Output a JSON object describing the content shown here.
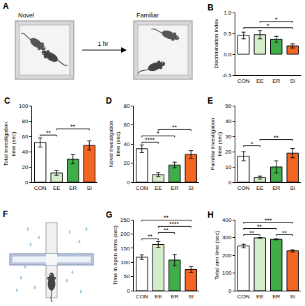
{
  "diagrams": [
    {
      "panel": "A",
      "left_label": "Novel",
      "arrow_label": "1 hr",
      "right_label": "Familiar"
    },
    {
      "panel": "F"
    }
  ],
  "chart_data": [
    {
      "panel": "B",
      "type": "bar",
      "y_label": "Discrimination index",
      "categories": [
        "CON",
        "EE",
        "ER",
        "SI"
      ],
      "values": [
        0.45,
        0.47,
        0.36,
        0.2
      ],
      "errors": [
        0.08,
        0.1,
        0.07,
        0.05
      ],
      "colors": [
        "#ffffff",
        "#d4ecc9",
        "#3fae49",
        "#f26522"
      ],
      "ylim": [
        -0.5,
        1.0
      ],
      "yticks": [
        -0.5,
        {
          "value": 0,
          "label": "0.0"
        },
        0.5,
        {
          "value": 1,
          "label": "1.0"
        }
      ],
      "grid": false,
      "significance": [
        {
          "from": "CON",
          "to": "SI",
          "label": "*"
        },
        {
          "from": "EE",
          "to": "SI",
          "label": "*"
        }
      ]
    },
    {
      "panel": "C",
      "type": "bar",
      "y_label": "Total investigation time (sec)",
      "categories": [
        "CON",
        "EE",
        "ER",
        "SI"
      ],
      "values": [
        52,
        12,
        30,
        48
      ],
      "errors": [
        6,
        3,
        6,
        6
      ],
      "colors": [
        "#ffffff",
        "#d4ecc9",
        "#3fae49",
        "#f26522"
      ],
      "ylim": [
        0,
        100
      ],
      "yticks": [
        0,
        20,
        40,
        60,
        80,
        100
      ],
      "grid": false,
      "significance": [
        {
          "from": "CON",
          "to": "EE",
          "label": "**"
        },
        {
          "from": "EE",
          "to": "SI",
          "label": "**"
        }
      ]
    },
    {
      "panel": "D",
      "type": "bar",
      "y_label": "Novel investigation time (sec)",
      "categories": [
        "CON",
        "EE",
        "ER",
        "SI"
      ],
      "values": [
        35,
        8,
        18,
        29
      ],
      "errors": [
        4,
        2,
        3,
        4
      ],
      "colors": [
        "#ffffff",
        "#d4ecc9",
        "#3fae49",
        "#f26522"
      ],
      "ylim": [
        0,
        80
      ],
      "yticks": [
        0,
        20,
        40,
        60,
        80
      ],
      "grid": false,
      "significance": [
        {
          "from": "CON",
          "to": "EE",
          "label": "****"
        },
        {
          "from": "CON",
          "to": "ER",
          "label": "*"
        },
        {
          "from": "EE",
          "to": "SI",
          "label": "**"
        }
      ]
    },
    {
      "panel": "E",
      "type": "bar",
      "y_label": "Familiar investigation time (sec)",
      "categories": [
        "CON",
        "EE",
        "ER",
        "SI"
      ],
      "values": [
        17,
        3,
        10,
        19
      ],
      "errors": [
        3,
        1,
        4,
        3
      ],
      "colors": [
        "#ffffff",
        "#d4ecc9",
        "#3fae49",
        "#f26522"
      ],
      "ylim": [
        0,
        50
      ],
      "yticks": [
        0,
        10,
        20,
        30,
        40,
        50
      ],
      "grid": false,
      "significance": [
        {
          "from": "CON",
          "to": "EE",
          "label": "*"
        },
        {
          "from": "EE",
          "to": "SI",
          "label": "**"
        }
      ]
    },
    {
      "panel": "G",
      "type": "bar",
      "y_label": "Time in open arms (sec)",
      "categories": [
        "CON",
        "EE",
        "ER",
        "SI"
      ],
      "values": [
        118,
        163,
        108,
        75
      ],
      "errors": [
        8,
        10,
        20,
        10
      ],
      "colors": [
        "#ffffff",
        "#d4ecc9",
        "#3fae49",
        "#f26522"
      ],
      "ylim": [
        0,
        250
      ],
      "yticks": [
        0,
        50,
        100,
        150,
        200,
        250
      ],
      "grid": false,
      "significance": [
        {
          "from": "CON",
          "to": "EE",
          "label": "**"
        },
        {
          "from": "EE",
          "to": "ER",
          "label": "**"
        },
        {
          "from": "EE",
          "to": "SI",
          "label": "****"
        },
        {
          "from": "CON",
          "to": "SI",
          "label": "**"
        }
      ]
    },
    {
      "panel": "H",
      "type": "bar",
      "y_label": "Total arm time (sec)",
      "categories": [
        "CON",
        "EE",
        "ER",
        "SI"
      ],
      "values": [
        252,
        298,
        290,
        225
      ],
      "errors": [
        10,
        2,
        3,
        6
      ],
      "colors": [
        "#ffffff",
        "#d4ecc9",
        "#3fae49",
        "#f26522"
      ],
      "ylim": [
        0,
        400
      ],
      "yticks": [
        0,
        100,
        200,
        300,
        400
      ],
      "grid": false,
      "significance": [
        {
          "from": "CON",
          "to": "EE",
          "label": "**"
        },
        {
          "from": "CON",
          "to": "ER",
          "label": "**"
        },
        {
          "from": "CON",
          "to": "SI",
          "label": "***"
        },
        {
          "from": "ER",
          "to": "SI",
          "label": "**"
        }
      ]
    }
  ]
}
